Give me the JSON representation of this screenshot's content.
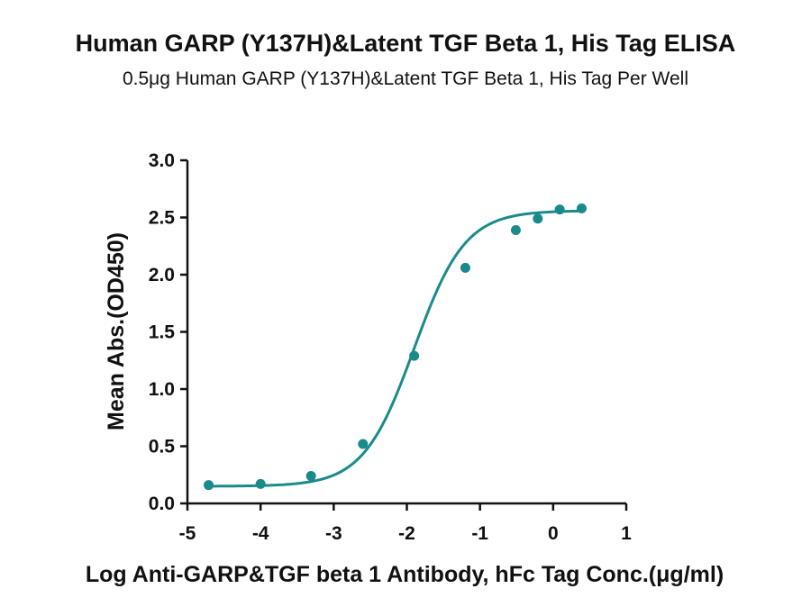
{
  "chart_data": {
    "type": "scatter",
    "title": "Human GARP (Y137H)&Latent TGF Beta 1, His Tag ELISA",
    "subtitle": "0.5μg Human GARP (Y137H)&Latent TGF Beta 1, His Tag Per Well",
    "xlabel": "Log Anti-GARP&TGF beta 1 Antibody, hFc Tag Conc.(μg/ml)",
    "ylabel": "Mean Abs.(OD450)",
    "xlim": [
      -5,
      1
    ],
    "ylim": [
      0,
      3.0
    ],
    "xticks": [
      "-5",
      "-4",
      "-3",
      "-2",
      "-1",
      "0",
      "1"
    ],
    "yticks": [
      "0.0",
      "0.5",
      "1.0",
      "1.5",
      "2.0",
      "2.5",
      "3.0"
    ],
    "grid": false,
    "color": "#1a8a8a",
    "series": [
      {
        "x": [
          -4.71,
          -4.0,
          -3.31,
          -2.6,
          -1.9,
          -1.2,
          -0.51,
          -0.21,
          0.09,
          0.39
        ],
        "y": [
          0.16,
          0.17,
          0.24,
          0.52,
          1.29,
          2.06,
          2.39,
          2.49,
          2.57,
          2.58
        ]
      }
    ],
    "fit_curve": {
      "model": "4PL",
      "bottom": 0.15,
      "top": 2.56,
      "logEC50": -1.9,
      "hill": 1.25,
      "x_range": [
        -4.71,
        0.39
      ]
    }
  }
}
